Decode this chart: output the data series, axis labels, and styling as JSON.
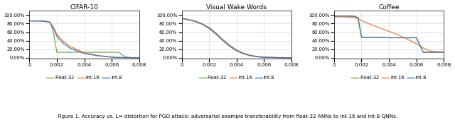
{
  "titles": [
    "CIFAR-10",
    "Visual Wake Words",
    "Coffee"
  ],
  "xlim": [
    0,
    0.008
  ],
  "xticks": [
    0,
    0.002,
    0.004,
    0.006,
    0.008
  ],
  "yticks": [
    0.0,
    0.2,
    0.4,
    0.6,
    0.8,
    1.0
  ],
  "colors": {
    "float32": "#70AD47",
    "int16": "#ED7D31",
    "int8": "#4472C4"
  },
  "legend_labels": [
    "Float-32",
    "Int-16",
    "Int-8"
  ],
  "caption": "Figure 1. Accuracy vs. L∞ distortion for PGD attack: adversarial example transferability from float-32 ANNs to int-16 and int-8 QNNs.",
  "cifar10": {
    "x": [
      0,
      0.0005,
      0.001,
      0.0012,
      0.0015,
      0.00175,
      0.002,
      0.0025,
      0.003,
      0.004,
      0.005,
      0.006,
      0.0065,
      0.007,
      0.0075,
      0.008
    ],
    "float32": [
      0.865,
      0.865,
      0.865,
      0.86,
      0.84,
      0.6,
      0.13,
      0.13,
      0.13,
      0.13,
      0.13,
      0.13,
      0.13,
      0.02,
      0.005,
      0.003
    ],
    "int16": [
      0.865,
      0.862,
      0.858,
      0.85,
      0.83,
      0.72,
      0.55,
      0.38,
      0.26,
      0.12,
      0.055,
      0.018,
      0.01,
      0.006,
      0.004,
      0.003
    ],
    "int8": [
      0.865,
      0.862,
      0.858,
      0.85,
      0.83,
      0.7,
      0.5,
      0.33,
      0.22,
      0.1,
      0.048,
      0.016,
      0.009,
      0.005,
      0.003,
      0.002
    ]
  },
  "vww": {
    "x": [
      0,
      0.0005,
      0.001,
      0.0015,
      0.002,
      0.0025,
      0.003,
      0.0035,
      0.004,
      0.0045,
      0.005,
      0.0055,
      0.006,
      0.007,
      0.008
    ],
    "float32": [
      0.92,
      0.895,
      0.86,
      0.8,
      0.71,
      0.58,
      0.43,
      0.295,
      0.185,
      0.11,
      0.062,
      0.034,
      0.018,
      0.006,
      0.003
    ],
    "int16": [
      0.92,
      0.892,
      0.854,
      0.792,
      0.698,
      0.566,
      0.416,
      0.282,
      0.174,
      0.102,
      0.056,
      0.029,
      0.015,
      0.005,
      0.002
    ],
    "int8": [
      0.92,
      0.888,
      0.848,
      0.784,
      0.686,
      0.552,
      0.402,
      0.268,
      0.163,
      0.094,
      0.05,
      0.024,
      0.012,
      0.004,
      0.001
    ]
  },
  "coffee": {
    "x": [
      0,
      0.0005,
      0.001,
      0.0012,
      0.0015,
      0.00175,
      0.002,
      0.003,
      0.004,
      0.0045,
      0.005,
      0.006,
      0.0065,
      0.007,
      0.008
    ],
    "float32": [
      0.975,
      0.975,
      0.975,
      0.975,
      0.97,
      0.94,
      0.48,
      0.48,
      0.47,
      0.47,
      0.47,
      0.47,
      0.13,
      0.13,
      0.13
    ],
    "int16": [
      0.96,
      0.958,
      0.955,
      0.95,
      0.94,
      0.92,
      0.87,
      0.74,
      0.62,
      0.56,
      0.49,
      0.33,
      0.23,
      0.16,
      0.13
    ]
  }
}
